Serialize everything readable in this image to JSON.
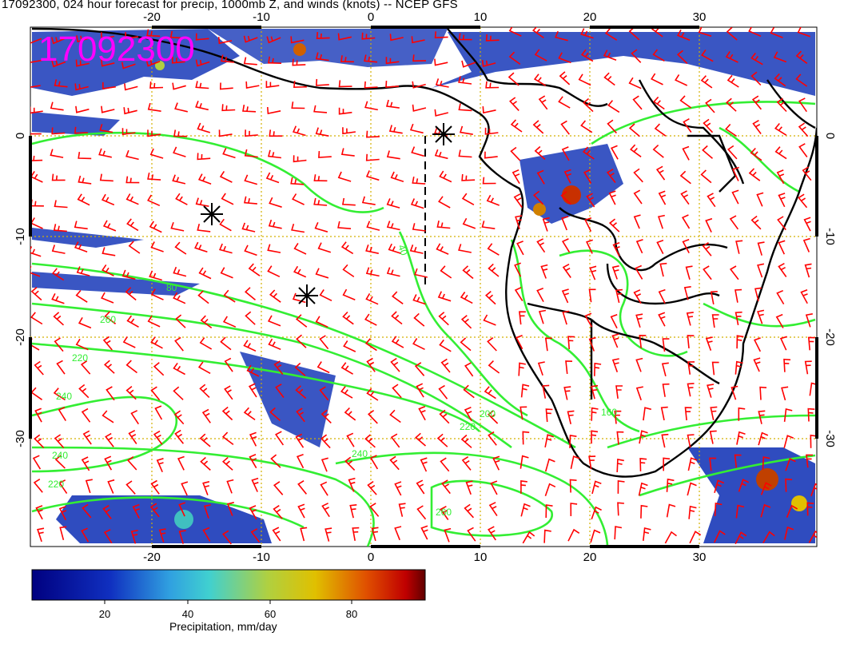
{
  "title": "17092300, 024 hour forecast for precip, 1000mb Z, and winds (knots) -- NCEP GFS",
  "stamp": "17092300",
  "map": {
    "lon_ticks": [
      "-20",
      "-10",
      "0",
      "10",
      "20",
      "30"
    ],
    "lat_ticks": [
      "0",
      "-10",
      "-20",
      "-30"
    ],
    "contour_labels": [
      "40",
      "80",
      "160",
      "200",
      "220",
      "240",
      "260"
    ],
    "colors": {
      "coast": "#000000",
      "contour": "#33ee33",
      "wind_barb": "#ff0000",
      "grid": "#d4b000",
      "precip_low": "#000080",
      "precip_mid": "#3a7fd0",
      "precip_high": "#d0b000",
      "precip_max": "#a00000"
    }
  },
  "colorbar": {
    "ticks": [
      "20",
      "40",
      "60",
      "80"
    ],
    "label": "Precipitation, mm/day"
  }
}
